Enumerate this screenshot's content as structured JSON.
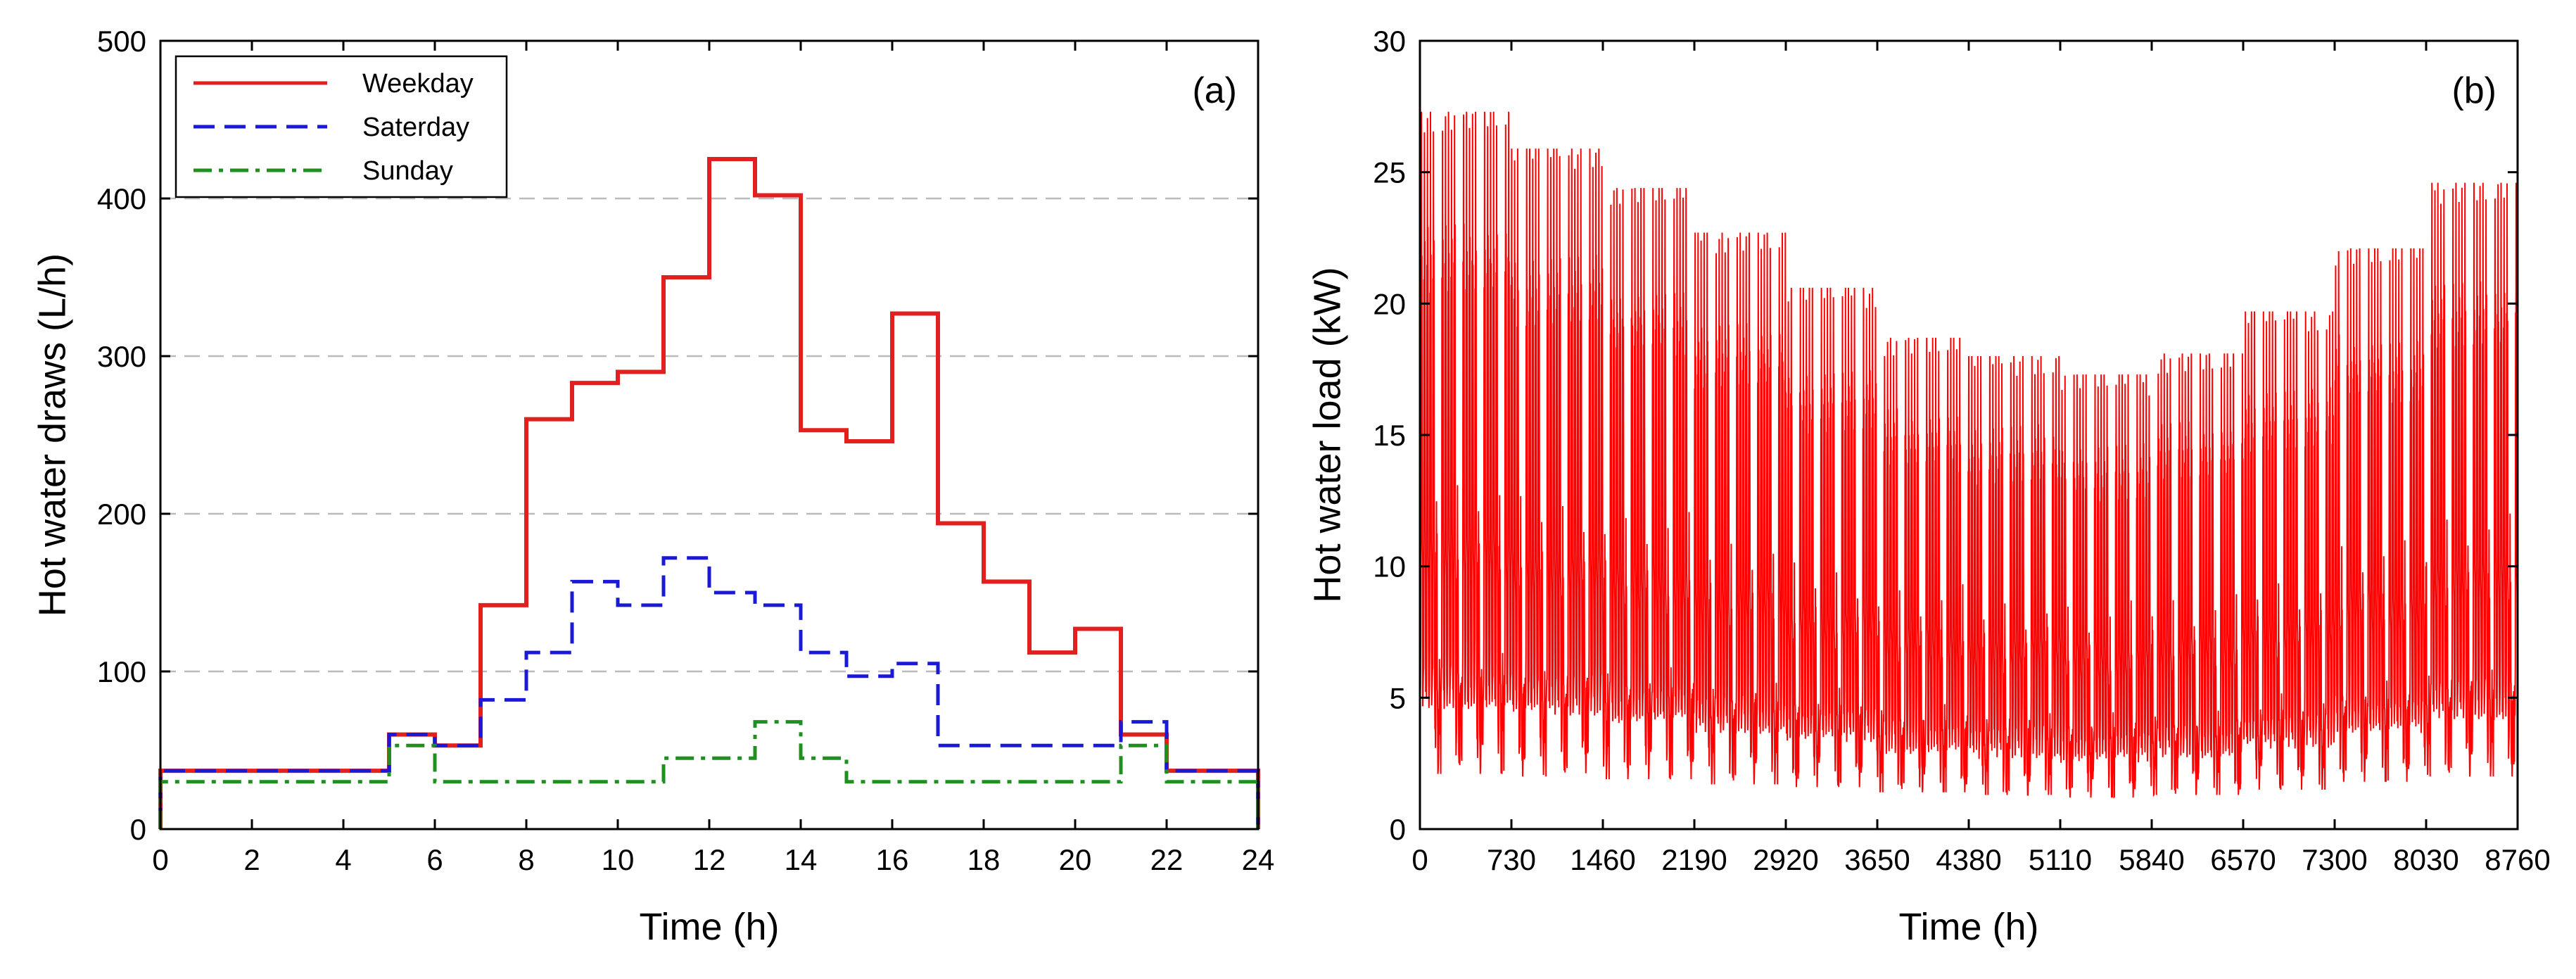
{
  "chart_data": [
    {
      "type": "line",
      "panel_label": "(a)",
      "xlabel": "Time (h)",
      "ylabel": "Hot water draws (L/h)",
      "xlim": [
        0,
        24
      ],
      "ylim": [
        0,
        500
      ],
      "xticks": [
        0,
        2,
        4,
        6,
        8,
        10,
        12,
        14,
        16,
        18,
        20,
        22,
        24
      ],
      "yticks": [
        0,
        100,
        200,
        300,
        400,
        500
      ],
      "grid": "horizontal dashed",
      "legend": "top-left",
      "step": true,
      "series": [
        {
          "name": "Weekday",
          "color": "#e32020",
          "dash": "solid",
          "values": [
            37,
            37,
            37,
            37,
            37,
            60,
            53,
            142,
            260,
            283,
            290,
            350,
            425,
            402,
            253,
            246,
            327,
            194,
            157,
            112,
            127,
            60,
            37,
            37
          ]
        },
        {
          "name": "Saterday",
          "color": "#1a1ad6",
          "dash": "dashed",
          "values": [
            37,
            37,
            37,
            37,
            37,
            60,
            53,
            82,
            112,
            157,
            142,
            172,
            150,
            142,
            112,
            97,
            105,
            53,
            53,
            53,
            53,
            68,
            37,
            37
          ]
        },
        {
          "name": "Sunday",
          "color": "#1f8f1f",
          "dash": "dashdot",
          "values": [
            30,
            30,
            30,
            30,
            30,
            53,
            30,
            30,
            30,
            30,
            30,
            45,
            45,
            68,
            45,
            30,
            30,
            30,
            30,
            30,
            30,
            53,
            30,
            30
          ]
        }
      ]
    },
    {
      "type": "line",
      "panel_label": "(b)",
      "xlabel": "Time (h)",
      "ylabel": "Hot water load (kW)",
      "xlim": [
        0,
        8760
      ],
      "ylim": [
        0,
        30
      ],
      "xticks": [
        0,
        730,
        1460,
        2190,
        2920,
        3650,
        4380,
        5110,
        5840,
        6570,
        7300,
        8030,
        8760
      ],
      "yticks": [
        0,
        5,
        10,
        15,
        20,
        25,
        30
      ],
      "grid": "off",
      "series": [
        {
          "color": "#ff0000",
          "monthly_peak": [
            27.3,
            25.9,
            24.4,
            22.7,
            20.6,
            18.7,
            18.0,
            17.3,
            18.1,
            19.7,
            22.1,
            24.6
          ],
          "monthly_base": [
            2.1,
            2.0,
            1.9,
            1.7,
            1.6,
            1.4,
            1.3,
            1.2,
            1.3,
            1.5,
            1.8,
            2.0
          ]
        }
      ]
    }
  ]
}
